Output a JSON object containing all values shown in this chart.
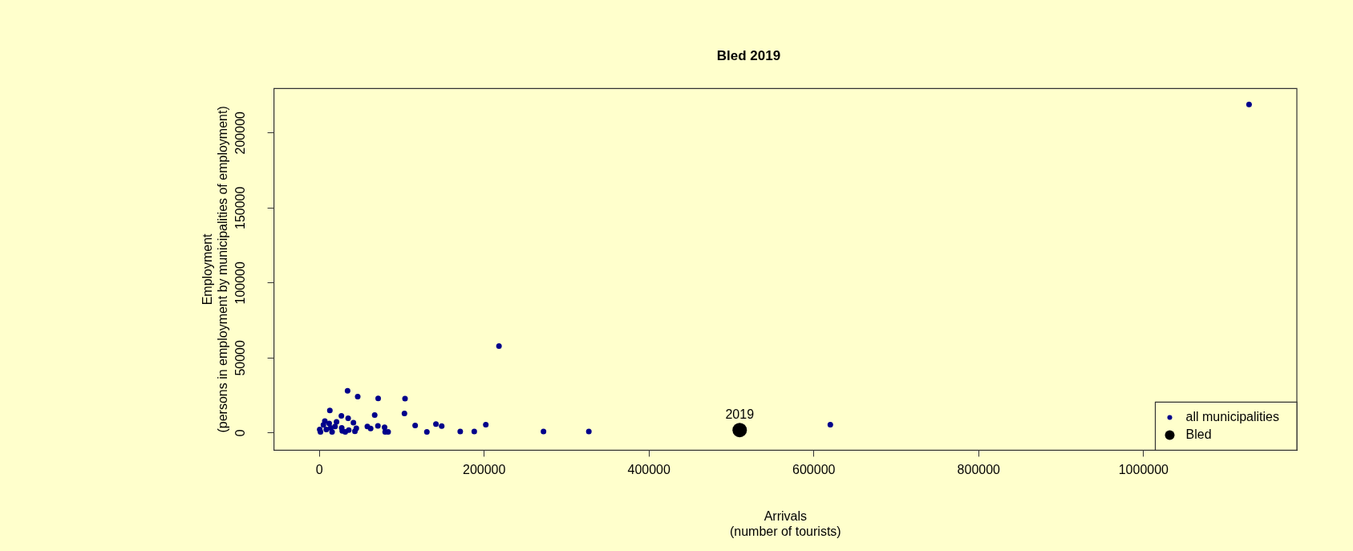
{
  "chart_data": {
    "type": "scatter",
    "title": "Bled 2019",
    "xlabel": "Arrivals\n(number of tourists)",
    "ylabel": "Employment\n(persons in employment by municipalities of employment)",
    "xlim": [
      -55000,
      1186000
    ],
    "xticks": [
      0,
      200000,
      400000,
      600000,
      800000,
      1000000
    ],
    "ylim": [
      -11500,
      229600
    ],
    "yticks": [
      0,
      50000,
      100000,
      150000,
      200000
    ],
    "grid": false,
    "legend": "bottom right",
    "marker": "circle",
    "annotations": [
      {
        "text": "2019",
        "x": 510000,
        "y": 2000
      }
    ],
    "series": [
      {
        "name": "all municipalities",
        "color": "#00008b",
        "x": [
          1128000,
          218000,
          620000,
          327000,
          272000,
          202000,
          188000,
          171000,
          34300,
          46600,
          71400,
          104000,
          103300,
          67200,
          26800,
          12800,
          35000,
          41400,
          116300,
          141500,
          148500,
          58300,
          62300,
          71100,
          79200,
          79900,
          83500,
          130500,
          27200,
          27900,
          31500,
          35700,
          43200,
          44900,
          20900,
          6700,
          8500,
          13800,
          15500,
          19100,
          1400,
          5000,
          12000,
          500
        ],
        "values": [
          219000,
          58000,
          5500,
          1000,
          1000,
          5500,
          1000,
          1000,
          28100,
          24300,
          23100,
          22900,
          13000,
          12000,
          11500,
          15000,
          9800,
          6900,
          5000,
          6000,
          4600,
          4400,
          3000,
          4800,
          3800,
          800,
          800,
          800,
          3400,
          1400,
          800,
          2000,
          1200,
          3200,
          7400,
          8000,
          2400,
          3400,
          800,
          4400,
          800,
          5400,
          6400,
          2400
        ]
      },
      {
        "name": "Bled",
        "color": "#000000",
        "x": [
          510000
        ],
        "values": [
          2000
        ]
      }
    ]
  }
}
